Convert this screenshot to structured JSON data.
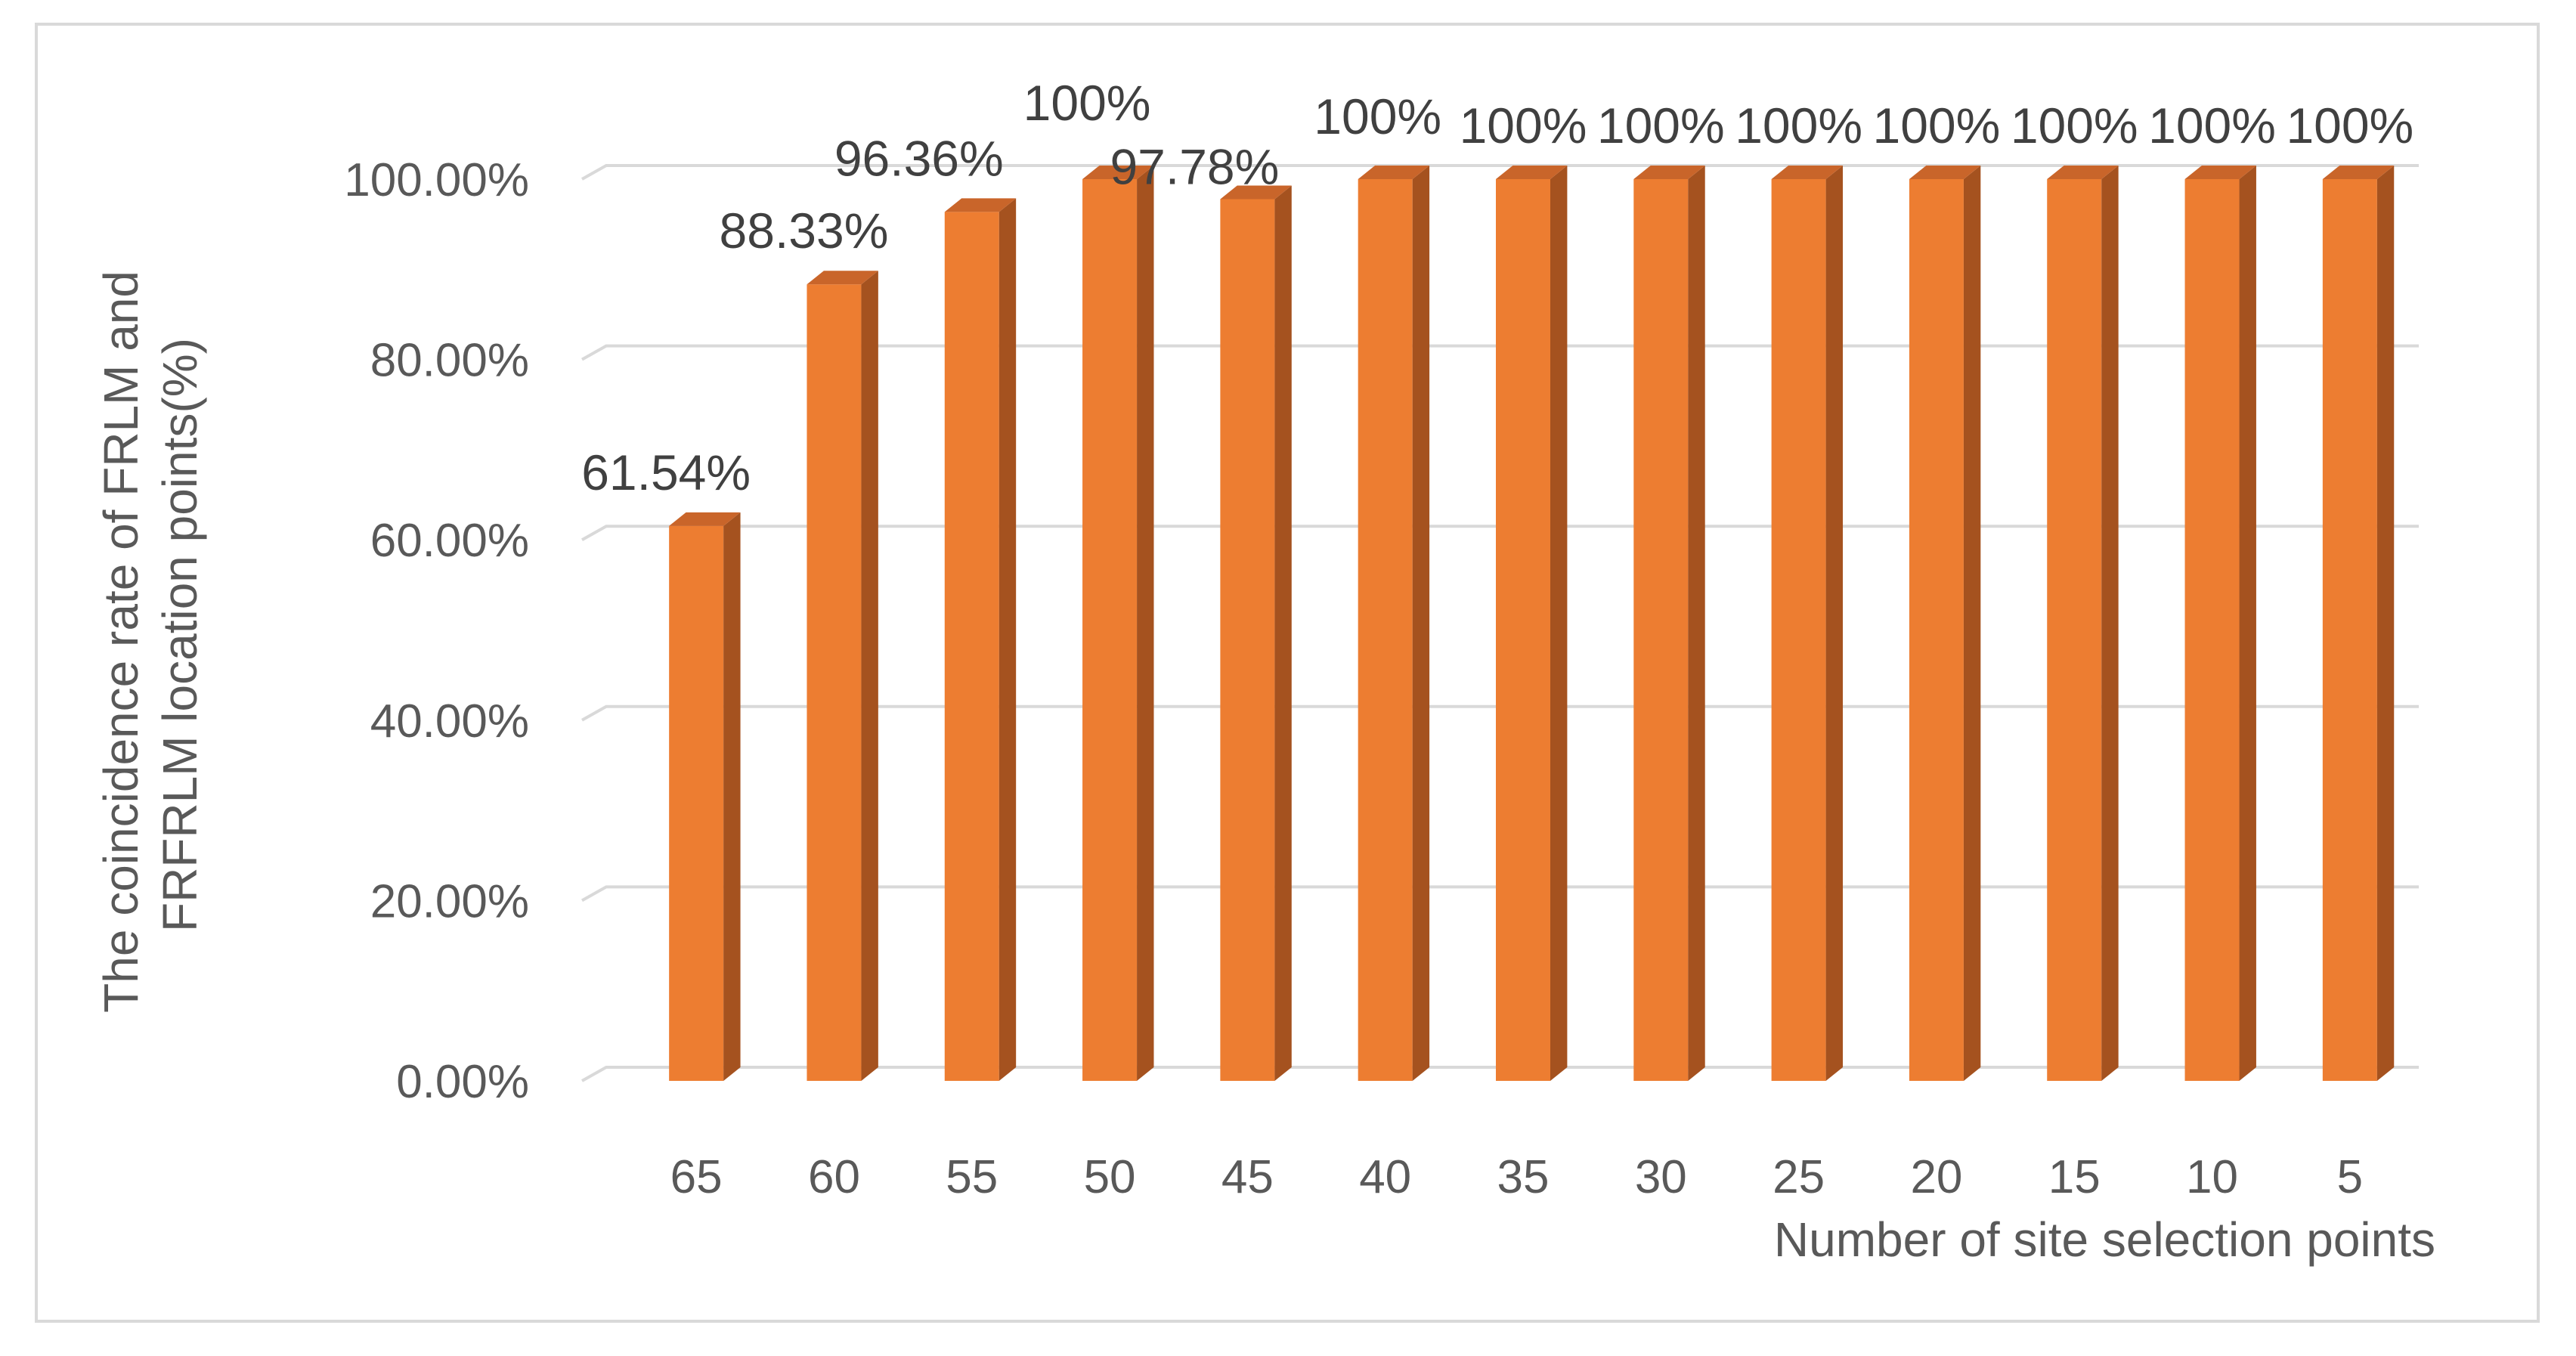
{
  "chart_data": {
    "type": "bar",
    "style": "3d-column",
    "categories": [
      "65",
      "60",
      "55",
      "50",
      "45",
      "40",
      "35",
      "30",
      "25",
      "20",
      "15",
      "10",
      "5"
    ],
    "values": [
      61.54,
      88.33,
      96.36,
      100,
      97.78,
      100,
      100,
      100,
      100,
      100,
      100,
      100,
      100
    ],
    "data_labels": [
      "61.54%",
      "88.33%",
      "96.36%",
      "100%",
      "97.78%",
      "100%",
      "100%",
      "100%",
      "100%",
      "100%",
      "100%",
      "100%",
      "100%"
    ],
    "y_ticks": [
      "0.00%",
      "20.00%",
      "40.00%",
      "60.00%",
      "80.00%",
      "100.00%"
    ],
    "ylim": [
      0,
      100
    ],
    "xlabel": "Number of site selection points",
    "ylabel_lines": [
      "The coincidence rate of FRLM and",
      "FRFRLM location points(%)"
    ],
    "grid": true,
    "legend": "none",
    "colors": {
      "bar_front": "#ed7d31",
      "bar_side": "#a5521f",
      "bar_top": "#c9652a",
      "gridline": "#d9d9d9"
    }
  }
}
